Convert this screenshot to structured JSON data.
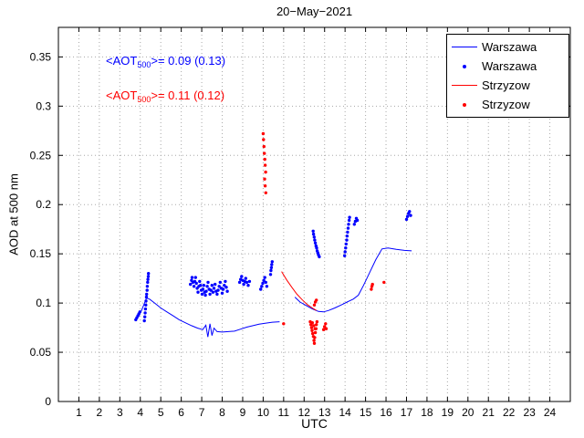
{
  "chart_data": {
    "type": "line+scatter",
    "title": "20−May−2021",
    "xlabel": "UTC",
    "ylabel": "AOD at 500 nm",
    "xlim": [
      0,
      25
    ],
    "ylim": [
      0,
      0.38
    ],
    "xticks": [
      1,
      2,
      3,
      4,
      5,
      6,
      7,
      8,
      9,
      10,
      11,
      12,
      13,
      14,
      15,
      16,
      17,
      18,
      19,
      20,
      21,
      22,
      23,
      24
    ],
    "yticks": [
      0,
      0.05,
      0.1,
      0.15,
      0.2,
      0.25,
      0.3,
      0.35
    ],
    "ytick_labels": [
      "0",
      "0.05",
      "0.1",
      "0.15",
      "0.2",
      "0.25",
      "0.3",
      "0.35"
    ],
    "grid": "dotted",
    "annotations": [
      {
        "color": "#0000ff",
        "pre": "<AOT",
        "sub": "500",
        "post": ">= 0.09 (0.13)"
      },
      {
        "color": "#ff0000",
        "pre": "<AOT",
        "sub": "500",
        "post": ">= 0.11 (0.12)"
      }
    ],
    "legend": {
      "position": "top-right",
      "entries": [
        {
          "label": "Warszawa",
          "type": "line",
          "color": "#0000ff"
        },
        {
          "label": "Warszawa",
          "type": "scatter",
          "color": "#0000ff"
        },
        {
          "label": "Strzyzow",
          "type": "line",
          "color": "#ff0000"
        },
        {
          "label": "Strzyzow",
          "type": "scatter",
          "color": "#ff0000"
        }
      ]
    },
    "series": [
      {
        "name": "Warszawa",
        "type": "line",
        "color": "#0000ff",
        "segments": [
          [
            [
              3.75,
              0.082
            ],
            [
              3.85,
              0.085
            ],
            [
              3.95,
              0.088
            ],
            [
              4.05,
              0.092
            ],
            [
              4.15,
              0.097
            ],
            [
              4.3,
              0.105
            ],
            [
              4.45,
              0.104
            ],
            [
              4.7,
              0.1
            ],
            [
              5.0,
              0.095
            ],
            [
              5.3,
              0.091
            ],
            [
              5.6,
              0.087
            ],
            [
              5.9,
              0.083
            ],
            [
              6.2,
              0.08
            ],
            [
              6.5,
              0.077
            ],
            [
              6.8,
              0.0745
            ],
            [
              7.05,
              0.073
            ],
            [
              7.2,
              0.0775
            ],
            [
              7.3,
              0.0655
            ],
            [
              7.4,
              0.079
            ],
            [
              7.5,
              0.067
            ],
            [
              7.6,
              0.0745
            ],
            [
              7.75,
              0.071
            ],
            [
              8.0,
              0.0705
            ],
            [
              8.3,
              0.071
            ],
            [
              8.6,
              0.0715
            ],
            [
              8.9,
              0.0735
            ],
            [
              9.2,
              0.0755
            ],
            [
              9.5,
              0.077
            ],
            [
              9.8,
              0.0785
            ],
            [
              10.1,
              0.0795
            ],
            [
              10.45,
              0.0805
            ],
            [
              10.8,
              0.081
            ]
          ],
          [
            [
              11.55,
              0.106
            ],
            [
              11.8,
              0.101
            ],
            [
              12.1,
              0.0975
            ],
            [
              12.4,
              0.094
            ],
            [
              12.7,
              0.0915
            ],
            [
              12.95,
              0.091
            ],
            [
              13.2,
              0.0925
            ],
            [
              13.5,
              0.095
            ],
            [
              13.8,
              0.098
            ],
            [
              14.1,
              0.101
            ],
            [
              14.4,
              0.104
            ],
            [
              14.65,
              0.108
            ],
            [
              14.9,
              0.118
            ],
            [
              15.2,
              0.131
            ],
            [
              15.5,
              0.144
            ],
            [
              15.8,
              0.155
            ],
            [
              16.1,
              0.156
            ],
            [
              16.5,
              0.1545
            ],
            [
              16.9,
              0.1535
            ],
            [
              17.25,
              0.153
            ]
          ]
        ]
      },
      {
        "name": "Warszawa",
        "type": "scatter",
        "color": "#0000ff",
        "points": [
          [
            3.78,
            0.083
          ],
          [
            3.83,
            0.085
          ],
          [
            3.88,
            0.087
          ],
          [
            3.93,
            0.089
          ],
          [
            3.98,
            0.091
          ],
          [
            4.2,
            0.082
          ],
          [
            4.22,
            0.086
          ],
          [
            4.24,
            0.09
          ],
          [
            4.25,
            0.094
          ],
          [
            4.27,
            0.098
          ],
          [
            4.28,
            0.102
          ],
          [
            4.3,
            0.106
          ],
          [
            4.31,
            0.109
          ],
          [
            4.33,
            0.113
          ],
          [
            4.34,
            0.117
          ],
          [
            4.36,
            0.121
          ],
          [
            4.37,
            0.124
          ],
          [
            4.39,
            0.127
          ],
          [
            4.4,
            0.13
          ],
          [
            6.45,
            0.119
          ],
          [
            6.5,
            0.123
          ],
          [
            6.53,
            0.126
          ],
          [
            6.57,
            0.121
          ],
          [
            6.62,
            0.117
          ],
          [
            6.66,
            0.122
          ],
          [
            6.7,
            0.126
          ],
          [
            6.74,
            0.12
          ],
          [
            6.78,
            0.115
          ],
          [
            6.82,
            0.111
          ],
          [
            6.86,
            0.117
          ],
          [
            6.9,
            0.122
          ],
          [
            6.94,
            0.118
          ],
          [
            6.98,
            0.113
          ],
          [
            7.02,
            0.109
          ],
          [
            7.06,
            0.114
          ],
          [
            7.1,
            0.118
          ],
          [
            7.14,
            0.111
          ],
          [
            7.18,
            0.108
          ],
          [
            7.22,
            0.112
          ],
          [
            7.27,
            0.117
          ],
          [
            7.31,
            0.121
          ],
          [
            7.36,
            0.114
          ],
          [
            7.4,
            0.109
          ],
          [
            7.45,
            0.113
          ],
          [
            7.5,
            0.118
          ],
          [
            7.55,
            0.111
          ],
          [
            7.6,
            0.115
          ],
          [
            7.65,
            0.119
          ],
          [
            7.7,
            0.112
          ],
          [
            7.75,
            0.109
          ],
          [
            7.8,
            0.113
          ],
          [
            7.85,
            0.117
          ],
          [
            7.9,
            0.121
          ],
          [
            7.95,
            0.115
          ],
          [
            8.0,
            0.11
          ],
          [
            8.05,
            0.114
          ],
          [
            8.1,
            0.118
          ],
          [
            8.15,
            0.122
          ],
          [
            8.2,
            0.116
          ],
          [
            8.25,
            0.112
          ],
          [
            8.85,
            0.121
          ],
          [
            8.9,
            0.124
          ],
          [
            8.95,
            0.127
          ],
          [
            9.0,
            0.123
          ],
          [
            9.05,
            0.119
          ],
          [
            9.1,
            0.122
          ],
          [
            9.15,
            0.125
          ],
          [
            9.2,
            0.121
          ],
          [
            9.27,
            0.118
          ],
          [
            9.33,
            0.122
          ],
          [
            9.88,
            0.114
          ],
          [
            9.93,
            0.117
          ],
          [
            9.98,
            0.12
          ],
          [
            10.03,
            0.123
          ],
          [
            10.08,
            0.126
          ],
          [
            10.13,
            0.121
          ],
          [
            10.18,
            0.117
          ],
          [
            10.36,
            0.129
          ],
          [
            10.38,
            0.133
          ],
          [
            10.4,
            0.136
          ],
          [
            10.42,
            0.139
          ],
          [
            10.44,
            0.142
          ],
          [
            12.44,
            0.173
          ],
          [
            12.46,
            0.17
          ],
          [
            12.49,
            0.167
          ],
          [
            12.52,
            0.164
          ],
          [
            12.55,
            0.161
          ],
          [
            12.58,
            0.158
          ],
          [
            12.61,
            0.156
          ],
          [
            12.64,
            0.153
          ],
          [
            12.67,
            0.151
          ],
          [
            12.7,
            0.149
          ],
          [
            12.74,
            0.147
          ],
          [
            13.98,
            0.148
          ],
          [
            14.0,
            0.152
          ],
          [
            14.03,
            0.156
          ],
          [
            14.05,
            0.16
          ],
          [
            14.08,
            0.164
          ],
          [
            14.1,
            0.168
          ],
          [
            14.12,
            0.172
          ],
          [
            14.15,
            0.176
          ],
          [
            14.17,
            0.18
          ],
          [
            14.2,
            0.184
          ],
          [
            14.22,
            0.187
          ],
          [
            14.45,
            0.18
          ],
          [
            14.5,
            0.183
          ],
          [
            14.55,
            0.186
          ],
          [
            14.6,
            0.184
          ],
          [
            17.0,
            0.185
          ],
          [
            17.05,
            0.188
          ],
          [
            17.1,
            0.191
          ],
          [
            17.15,
            0.193
          ],
          [
            17.2,
            0.189
          ]
        ]
      },
      {
        "name": "Strzyzow",
        "type": "line",
        "color": "#ff0000",
        "segments": [
          [
            [
              10.9,
              0.132
            ],
            [
              11.15,
              0.1235
            ],
            [
              11.4,
              0.116
            ],
            [
              11.65,
              0.109
            ],
            [
              11.9,
              0.1035
            ],
            [
              12.15,
              0.0985
            ],
            [
              12.4,
              0.095
            ],
            [
              12.6,
              0.0925
            ]
          ]
        ]
      },
      {
        "name": "Strzyzow",
        "type": "scatter",
        "color": "#ff0000",
        "points": [
          [
            10.0,
            0.272
          ],
          [
            10.02,
            0.266
          ],
          [
            10.04,
            0.259
          ],
          [
            10.06,
            0.252
          ],
          [
            10.08,
            0.246
          ],
          [
            10.1,
            0.24
          ],
          [
            10.12,
            0.233
          ],
          [
            10.07,
            0.226
          ],
          [
            10.1,
            0.219
          ],
          [
            10.13,
            0.212
          ],
          [
            11.0,
            0.079
          ],
          [
            12.3,
            0.081
          ],
          [
            12.33,
            0.078
          ],
          [
            12.36,
            0.075
          ],
          [
            12.39,
            0.072
          ],
          [
            12.42,
            0.069
          ],
          [
            12.45,
            0.066
          ],
          [
            12.48,
            0.062
          ],
          [
            12.5,
            0.059
          ],
          [
            12.52,
            0.065
          ],
          [
            12.55,
            0.07
          ],
          [
            12.58,
            0.074
          ],
          [
            12.6,
            0.078
          ],
          [
            12.63,
            0.081
          ],
          [
            12.4,
            0.08
          ],
          [
            12.47,
            0.077
          ],
          [
            12.53,
            0.074
          ],
          [
            12.5,
            0.098
          ],
          [
            12.55,
            0.101
          ],
          [
            12.6,
            0.103
          ],
          [
            12.95,
            0.073
          ],
          [
            13.0,
            0.076
          ],
          [
            13.05,
            0.079
          ],
          [
            13.08,
            0.074
          ],
          [
            15.28,
            0.114
          ],
          [
            15.31,
            0.117
          ],
          [
            15.34,
            0.119
          ],
          [
            15.9,
            0.121
          ]
        ]
      }
    ]
  }
}
